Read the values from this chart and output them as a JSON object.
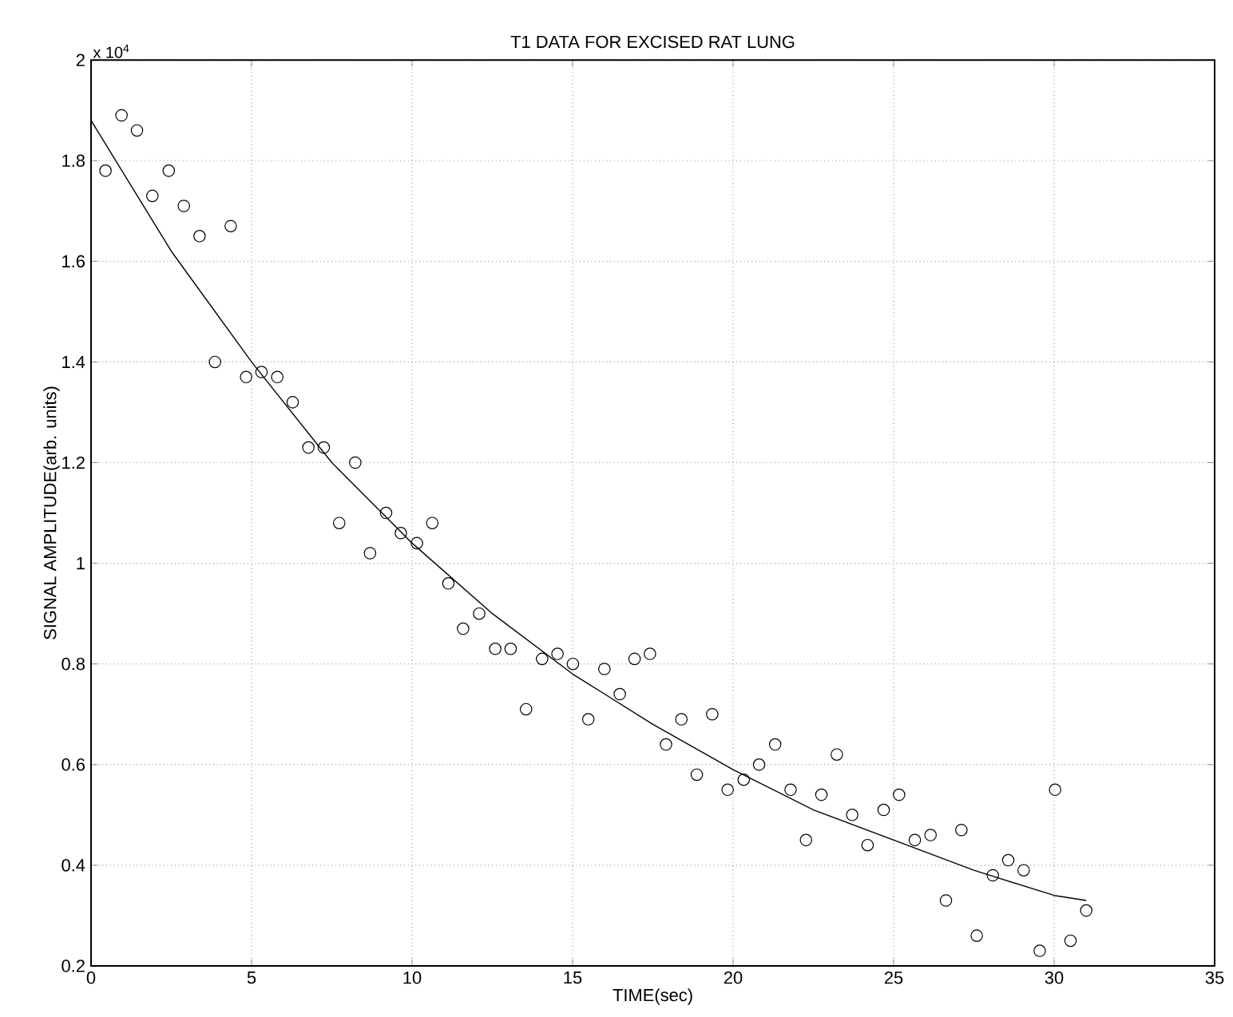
{
  "chart_data": {
    "type": "scatter",
    "title": "T1 DATA FOR EXCISED RAT LUNG",
    "xlabel": "TIME(sec)",
    "ylabel": "SIGNAL AMPLITUDE(arb. units)",
    "annotations": [
      "x 10$^{4}$"
    ],
    "xlim": [
      0,
      35
    ],
    "ylim": [
      0.2,
      2
    ],
    "xticks": [
      0,
      5,
      10,
      15,
      20,
      25,
      30,
      35
    ],
    "yticks": [
      0.2,
      0.4,
      0.6,
      0.8,
      1,
      1.2,
      1.4,
      1.6,
      1.8,
      2
    ],
    "grid": true,
    "marker": "circle",
    "series": [
      {
        "color": "#000000",
        "x": [
          0.45,
          0.95,
          1.43,
          1.91,
          2.42,
          2.89,
          3.38,
          3.86,
          4.35,
          4.83,
          5.31,
          5.8,
          6.28,
          6.77,
          7.25,
          7.73,
          8.23,
          8.69,
          9.19,
          9.65,
          10.15,
          10.63,
          11.13,
          11.59,
          12.09,
          12.59,
          13.07,
          13.55,
          14.05,
          14.53,
          15.01,
          15.49,
          15.99,
          16.47,
          16.93,
          17.41,
          17.91,
          18.39,
          18.87,
          19.35,
          19.83,
          20.33,
          20.81,
          21.31,
          21.79,
          22.27,
          22.75,
          23.23,
          23.71,
          24.19,
          24.69,
          25.17,
          25.66,
          26.15,
          26.63,
          27.11,
          27.59,
          28.09,
          28.57,
          29.05,
          29.55,
          30.03,
          30.51,
          31.0
        ],
        "values": [
          1.78,
          1.89,
          1.86,
          1.73,
          1.78,
          1.71,
          1.65,
          1.4,
          1.67,
          1.37,
          1.38,
          1.37,
          1.32,
          1.23,
          1.23,
          1.08,
          1.2,
          1.02,
          1.1,
          1.06,
          1.04,
          1.08,
          0.96,
          0.87,
          0.9,
          0.83,
          0.83,
          0.71,
          0.81,
          0.82,
          0.8,
          0.69,
          0.79,
          0.74,
          0.81,
          0.82,
          0.64,
          0.69,
          0.58,
          0.7,
          0.55,
          0.57,
          0.6,
          0.64,
          0.55,
          0.45,
          0.54,
          0.62,
          0.5,
          0.44,
          0.51,
          0.54,
          0.45,
          0.46,
          0.33,
          0.47,
          0.26,
          0.38,
          0.41,
          0.39,
          0.23,
          0.55,
          0.25,
          0.31
        ]
      },
      {
        "type": "line",
        "color": "#000000",
        "marker": "none",
        "x": [
          0,
          2.5,
          5,
          7.5,
          10,
          12.5,
          15,
          17.5,
          20,
          22.5,
          25,
          27.5,
          30,
          31
        ],
        "values": [
          1.88,
          1.62,
          1.4,
          1.2,
          1.04,
          0.9,
          0.78,
          0.68,
          0.59,
          0.51,
          0.45,
          0.39,
          0.34,
          0.33
        ]
      }
    ]
  }
}
